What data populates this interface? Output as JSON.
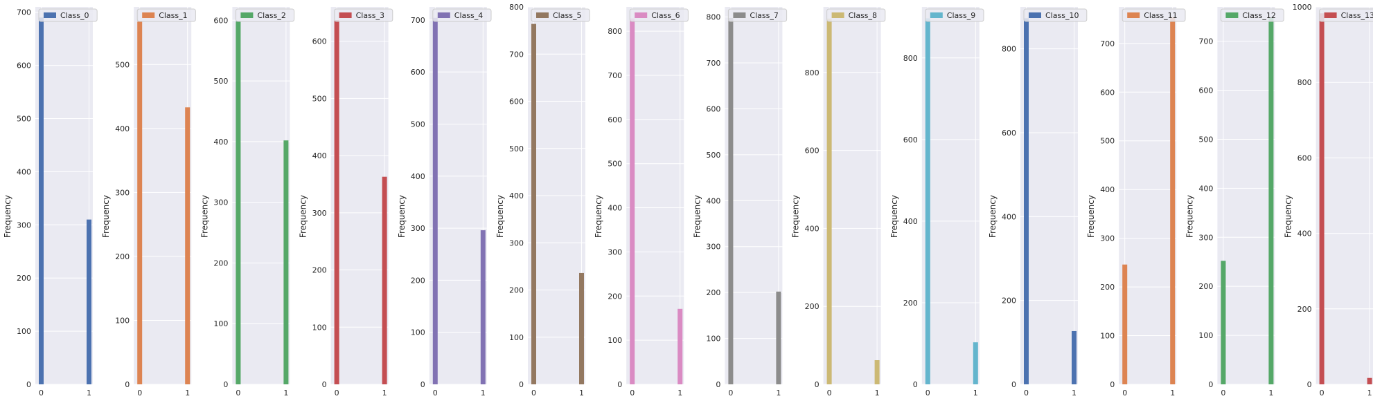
{
  "figure": {
    "background": "#ffffff",
    "panel_background": "#eaeaf2",
    "grid_color": "#ffffff"
  },
  "chart_data": [
    {
      "type": "bar",
      "series": [
        {
          "name": "Class_0",
          "color": "#4c72b0",
          "x": [
            0,
            1
          ],
          "values": [
            690,
            310
          ]
        }
      ],
      "ylabel": "Frequency",
      "xticks": [
        "0",
        "1"
      ],
      "yticks": [
        "0",
        "100",
        "200",
        "300",
        "400",
        "500",
        "600",
        "700"
      ],
      "ylim": [
        0,
        710
      ],
      "grid": true,
      "legend": "top-left"
    },
    {
      "type": "bar",
      "series": [
        {
          "name": "Class_1",
          "color": "#dd8452",
          "x": [
            0,
            1
          ],
          "values": [
            567,
            433
          ]
        }
      ],
      "ylabel": "Frequency",
      "xticks": [
        "0",
        "1"
      ],
      "yticks": [
        "0",
        "100",
        "200",
        "300",
        "400",
        "500"
      ],
      "ylim": [
        0,
        590
      ],
      "grid": true,
      "legend": "top-left"
    },
    {
      "type": "bar",
      "series": [
        {
          "name": "Class_2",
          "color": "#55a868",
          "x": [
            0,
            1
          ],
          "values": [
            598,
            402
          ]
        }
      ],
      "ylabel": "Frequency",
      "xticks": [
        "0",
        "1"
      ],
      "yticks": [
        "0",
        "100",
        "200",
        "300",
        "400",
        "500",
        "600"
      ],
      "ylim": [
        0,
        622
      ],
      "grid": true,
      "legend": "top-left"
    },
    {
      "type": "bar",
      "series": [
        {
          "name": "Class_3",
          "color": "#c44e52",
          "x": [
            0,
            1
          ],
          "values": [
            637,
            363
          ]
        }
      ],
      "ylabel": "Frequency",
      "xticks": [
        "0",
        "1"
      ],
      "yticks": [
        "0",
        "100",
        "200",
        "300",
        "400",
        "500",
        "600"
      ],
      "ylim": [
        0,
        660
      ],
      "grid": true,
      "legend": "top-left"
    },
    {
      "type": "bar",
      "series": [
        {
          "name": "Class_4",
          "color": "#8172b3",
          "x": [
            0,
            1
          ],
          "values": [
            704,
            296
          ]
        }
      ],
      "ylabel": "Frequency",
      "xticks": [
        "0",
        "1"
      ],
      "yticks": [
        "0",
        "100",
        "200",
        "300",
        "400",
        "500",
        "600",
        "700"
      ],
      "ylim": [
        0,
        725
      ],
      "grid": true,
      "legend": "top-left"
    },
    {
      "type": "bar",
      "series": [
        {
          "name": "Class_5",
          "color": "#937860",
          "x": [
            0,
            1
          ],
          "values": [
            764,
            236
          ]
        }
      ],
      "ylabel": "Frequency",
      "xticks": [
        "0",
        "1"
      ],
      "yticks": [
        "0",
        "100",
        "200",
        "300",
        "400",
        "500",
        "600",
        "700",
        "800"
      ],
      "ylim": [
        0,
        800
      ],
      "grid": true,
      "legend": "top-left"
    },
    {
      "type": "bar",
      "series": [
        {
          "name": "Class_6",
          "color": "#da8bc3",
          "x": [
            0,
            1
          ],
          "values": [
            829,
            171
          ]
        }
      ],
      "ylabel": "Frequency",
      "xticks": [
        "0",
        "1"
      ],
      "yticks": [
        "0",
        "100",
        "200",
        "300",
        "400",
        "500",
        "600",
        "700",
        "800"
      ],
      "ylim": [
        0,
        855
      ],
      "grid": true,
      "legend": "top-left"
    },
    {
      "type": "bar",
      "series": [
        {
          "name": "Class_7",
          "color": "#8c8c8c",
          "x": [
            0,
            1
          ],
          "values": [
            798,
            202
          ]
        }
      ],
      "ylabel": "Frequency",
      "xticks": [
        "0",
        "1"
      ],
      "yticks": [
        "0",
        "100",
        "200",
        "300",
        "400",
        "500",
        "600",
        "700",
        "800"
      ],
      "ylim": [
        0,
        822
      ],
      "grid": true,
      "legend": "top-left"
    },
    {
      "type": "bar",
      "series": [
        {
          "name": "Class_8",
          "color": "#ccb974",
          "x": [
            0,
            1
          ],
          "values": [
            938,
            62
          ]
        }
      ],
      "ylabel": "Frequency",
      "xticks": [
        "0",
        "1"
      ],
      "yticks": [
        "0",
        "200",
        "400",
        "600",
        "800"
      ],
      "ylim": [
        0,
        968
      ],
      "grid": true,
      "legend": "top-left"
    },
    {
      "type": "bar",
      "series": [
        {
          "name": "Class_9",
          "color": "#64b5cd",
          "x": [
            0,
            1
          ],
          "values": [
            897,
            103
          ]
        }
      ],
      "ylabel": "Frequency",
      "xticks": [
        "0",
        "1"
      ],
      "yticks": [
        "0",
        "200",
        "400",
        "600",
        "800"
      ],
      "ylim": [
        0,
        925
      ],
      "grid": true,
      "legend": "top-left"
    },
    {
      "type": "bar",
      "series": [
        {
          "name": "Class_10",
          "color": "#4c72b0",
          "x": [
            0,
            1
          ],
          "values": [
            873,
            127
          ]
        }
      ],
      "ylabel": "Frequency",
      "xticks": [
        "0",
        "1"
      ],
      "yticks": [
        "0",
        "200",
        "400",
        "600",
        "800"
      ],
      "ylim": [
        0,
        900
      ],
      "grid": true,
      "legend": "top-left"
    },
    {
      "type": "bar",
      "series": [
        {
          "name": "Class_11",
          "color": "#dd8452",
          "x": [
            0,
            1
          ],
          "values": [
            246,
            754
          ]
        }
      ],
      "ylabel": "Frequency",
      "xticks": [
        "0",
        "1"
      ],
      "yticks": [
        "0",
        "100",
        "200",
        "300",
        "400",
        "500",
        "600",
        "700"
      ],
      "ylim": [
        0,
        775
      ],
      "grid": true,
      "legend": "top-left"
    },
    {
      "type": "bar",
      "series": [
        {
          "name": "Class_12",
          "color": "#55a868",
          "x": [
            0,
            1
          ],
          "values": [
            252,
            748
          ]
        }
      ],
      "ylabel": "Frequency",
      "xticks": [
        "0",
        "1"
      ],
      "yticks": [
        "0",
        "100",
        "200",
        "300",
        "400",
        "500",
        "600",
        "700"
      ],
      "ylim": [
        0,
        770
      ],
      "grid": true,
      "legend": "top-left"
    },
    {
      "type": "bar",
      "series": [
        {
          "name": "Class_13",
          "color": "#c44e52",
          "x": [
            0,
            1
          ],
          "values": [
            983,
            17
          ]
        }
      ],
      "ylabel": "Frequency",
      "xticks": [
        "0",
        "1"
      ],
      "yticks": [
        "0",
        "200",
        "400",
        "600",
        "800",
        "1000"
      ],
      "ylim": [
        0,
        1000
      ],
      "grid": true,
      "legend": "top-left"
    }
  ]
}
